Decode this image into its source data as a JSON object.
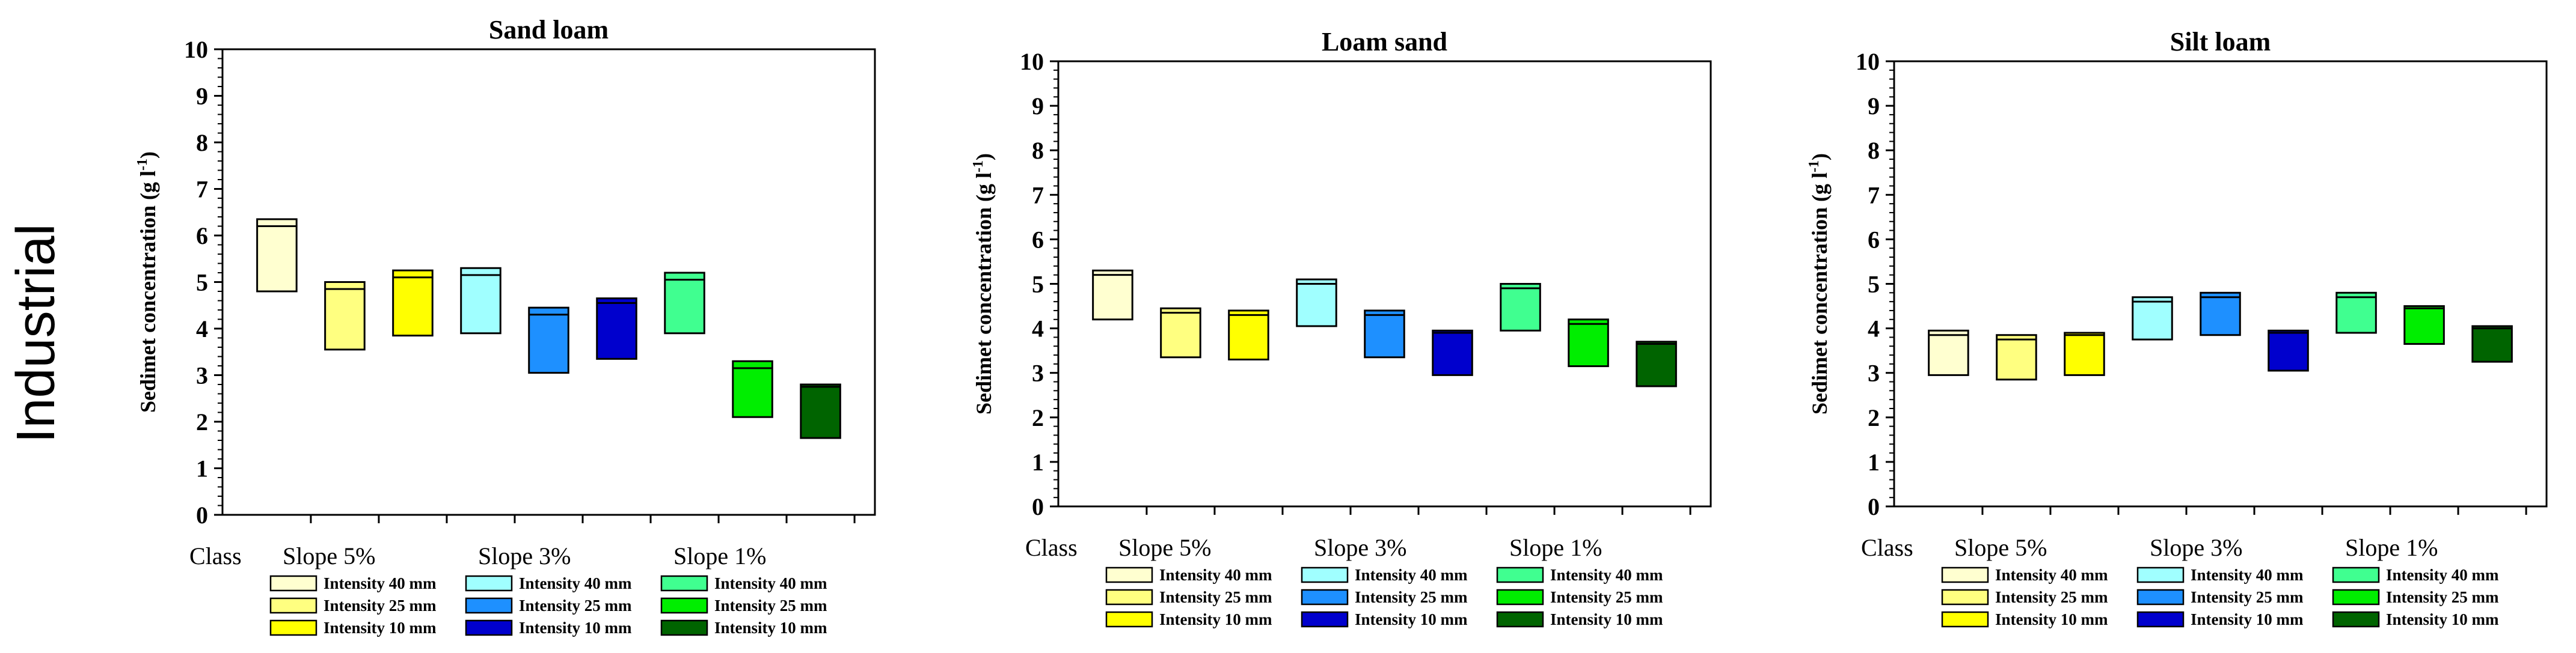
{
  "row_label": "Industrial",
  "class_label": "Class",
  "colors": {
    "i40_s5": "#ffffd0",
    "i25_s5": "#ffff80",
    "i10_s5": "#ffff00",
    "i40_s3": "#a0ffff",
    "i25_s3": "#1e90ff",
    "i10_s3": "#0000cd",
    "i40_s1": "#40ff90",
    "i25_s1": "#00ee00",
    "i10_s1": "#006400"
  },
  "legend": {
    "groups": [
      {
        "label": "Slope 5%",
        "items": [
          {
            "label": "Intensity 40 mm",
            "color_key": "i40_s5"
          },
          {
            "label": "Intensity 25 mm",
            "color_key": "i25_s5"
          },
          {
            "label": "Intensity 10 mm",
            "color_key": "i10_s5"
          }
        ]
      },
      {
        "label": "Slope 3%",
        "items": [
          {
            "label": "Intensity 40 mm",
            "color_key": "i40_s3"
          },
          {
            "label": "Intensity 25 mm",
            "color_key": "i25_s3"
          },
          {
            "label": "Intensity 10 mm",
            "color_key": "i10_s3"
          }
        ]
      },
      {
        "label": "Slope 1%",
        "items": [
          {
            "label": "Intensity 40 mm",
            "color_key": "i40_s1"
          },
          {
            "label": "Intensity 25 mm",
            "color_key": "i25_s1"
          },
          {
            "label": "Intensity 10 mm",
            "color_key": "i10_s1"
          }
        ]
      }
    ]
  },
  "chart_data": [
    {
      "type": "box",
      "title": "Sand loam",
      "ylabel": "Sedimet concentration (g l⁻¹)",
      "ylim": [
        0,
        10
      ],
      "yticks": [
        "0",
        "1",
        "2",
        "3",
        "4",
        "5",
        "6",
        "7",
        "8",
        "9",
        "10"
      ],
      "boxes": [
        {
          "series": "Slope 5% Intensity 40 mm",
          "color_key": "i40_s5",
          "low": 4.8,
          "median": 6.2,
          "high": 6.35
        },
        {
          "series": "Slope 5% Intensity 25 mm",
          "color_key": "i25_s5",
          "low": 3.55,
          "median": 4.85,
          "high": 5.0
        },
        {
          "series": "Slope 5% Intensity 10 mm",
          "color_key": "i10_s5",
          "low": 3.85,
          "median": 5.1,
          "high": 5.25
        },
        {
          "series": "Slope 3% Intensity 40 mm",
          "color_key": "i40_s3",
          "low": 3.9,
          "median": 5.15,
          "high": 5.3
        },
        {
          "series": "Slope 3% Intensity 25 mm",
          "color_key": "i25_s3",
          "low": 3.05,
          "median": 4.3,
          "high": 4.45
        },
        {
          "series": "Slope 3% Intensity 10 mm",
          "color_key": "i10_s3",
          "low": 3.35,
          "median": 4.55,
          "high": 4.65
        },
        {
          "series": "Slope 1% Intensity 40 mm",
          "color_key": "i40_s1",
          "low": 3.9,
          "median": 5.05,
          "high": 5.2
        },
        {
          "series": "Slope 1% Intensity 25 mm",
          "color_key": "i25_s1",
          "low": 2.1,
          "median": 3.15,
          "high": 3.3
        },
        {
          "series": "Slope 1% Intensity 10 mm",
          "color_key": "i10_s1",
          "low": 1.65,
          "median": 2.75,
          "high": 2.8
        }
      ]
    },
    {
      "type": "box",
      "title": "Loam sand",
      "ylabel": "Sedimet concentration (g l⁻¹)",
      "ylim": [
        0,
        10
      ],
      "yticks": [
        "0",
        "1",
        "2",
        "3",
        "4",
        "5",
        "6",
        "7",
        "8",
        "9",
        "10"
      ],
      "boxes": [
        {
          "series": "Slope 5% Intensity 40 mm",
          "color_key": "i40_s5",
          "low": 4.2,
          "median": 5.2,
          "high": 5.3
        },
        {
          "series": "Slope 5% Intensity 25 mm",
          "color_key": "i25_s5",
          "low": 3.35,
          "median": 4.35,
          "high": 4.45
        },
        {
          "series": "Slope 5% Intensity 10 mm",
          "color_key": "i10_s5",
          "low": 3.3,
          "median": 4.3,
          "high": 4.4
        },
        {
          "series": "Slope 3% Intensity 40 mm",
          "color_key": "i40_s3",
          "low": 4.05,
          "median": 5.0,
          "high": 5.1
        },
        {
          "series": "Slope 3% Intensity 25 mm",
          "color_key": "i25_s3",
          "low": 3.35,
          "median": 4.3,
          "high": 4.4
        },
        {
          "series": "Slope 3% Intensity 10 mm",
          "color_key": "i10_s3",
          "low": 2.95,
          "median": 3.9,
          "high": 3.95
        },
        {
          "series": "Slope 1% Intensity 40 mm",
          "color_key": "i40_s1",
          "low": 3.95,
          "median": 4.9,
          "high": 5.0
        },
        {
          "series": "Slope 1% Intensity 25 mm",
          "color_key": "i25_s1",
          "low": 3.15,
          "median": 4.1,
          "high": 4.2
        },
        {
          "series": "Slope 1% Intensity 10 mm",
          "color_key": "i10_s1",
          "low": 2.7,
          "median": 3.65,
          "high": 3.7
        }
      ]
    },
    {
      "type": "box",
      "title": "Silt loam",
      "ylabel": "Sedimet concentration (g l⁻¹)",
      "ylim": [
        0,
        10
      ],
      "yticks": [
        "0",
        "1",
        "2",
        "3",
        "4",
        "5",
        "6",
        "7",
        "8",
        "9",
        "10"
      ],
      "boxes": [
        {
          "series": "Slope 5% Intensity 40 mm",
          "color_key": "i40_s5",
          "low": 2.95,
          "median": 3.85,
          "high": 3.95
        },
        {
          "series": "Slope 5% Intensity 25 mm",
          "color_key": "i25_s5",
          "low": 2.85,
          "median": 3.75,
          "high": 3.85
        },
        {
          "series": "Slope 5% Intensity 10 mm",
          "color_key": "i10_s5",
          "low": 2.95,
          "median": 3.85,
          "high": 3.9
        },
        {
          "series": "Slope 3% Intensity 40 mm",
          "color_key": "i40_s3",
          "low": 3.75,
          "median": 4.6,
          "high": 4.7
        },
        {
          "series": "Slope 3% Intensity 25 mm",
          "color_key": "i25_s3",
          "low": 3.85,
          "median": 4.7,
          "high": 4.8
        },
        {
          "series": "Slope 3% Intensity 10 mm",
          "color_key": "i10_s3",
          "low": 3.05,
          "median": 3.9,
          "high": 3.95
        },
        {
          "series": "Slope 1% Intensity 40 mm",
          "color_key": "i40_s1",
          "low": 3.9,
          "median": 4.7,
          "high": 4.8
        },
        {
          "series": "Slope 1% Intensity 25 mm",
          "color_key": "i25_s1",
          "low": 3.65,
          "median": 4.45,
          "high": 4.5
        },
        {
          "series": "Slope 1% Intensity 10 mm",
          "color_key": "i10_s1",
          "low": 3.25,
          "median": 4.0,
          "high": 4.05
        }
      ]
    }
  ]
}
